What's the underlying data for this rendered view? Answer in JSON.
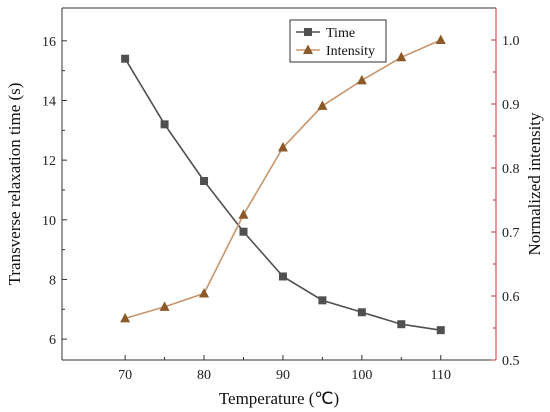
{
  "chart_data": {
    "type": "line",
    "x": [
      70,
      75,
      80,
      85,
      90,
      95,
      100,
      105,
      110
    ],
    "xlabel": "Temperature (℃)",
    "xlim": [
      62,
      117
    ],
    "xticks": [
      70,
      80,
      90,
      100,
      110
    ],
    "series": [
      {
        "name": "Time",
        "axis": "left",
        "marker": "square",
        "color": "#505050",
        "values": [
          15.4,
          13.2,
          11.3,
          9.6,
          8.1,
          7.3,
          6.9,
          6.5,
          6.3
        ]
      },
      {
        "name": "Intensity",
        "axis": "right",
        "marker": "triangle",
        "color": "#8c5a28",
        "line_color": "#c8966e",
        "values": [
          0.565,
          0.583,
          0.604,
          0.727,
          0.832,
          0.897,
          0.937,
          0.973,
          1.0
        ]
      }
    ],
    "y_left": {
      "label": "Transverse relaxation time (s)",
      "ylim": [
        5.3,
        17.1
      ],
      "ticks": [
        6,
        8,
        10,
        12,
        14,
        16
      ],
      "color": "#333333"
    },
    "y_right": {
      "label": "Normalized intensity",
      "ylim": [
        0.5,
        1.05
      ],
      "ticks": [
        0.5,
        0.6,
        0.7,
        0.8,
        0.9,
        1.0
      ],
      "color": "#d03030"
    },
    "legend": {
      "placement": "top-center"
    },
    "grid": false
  }
}
